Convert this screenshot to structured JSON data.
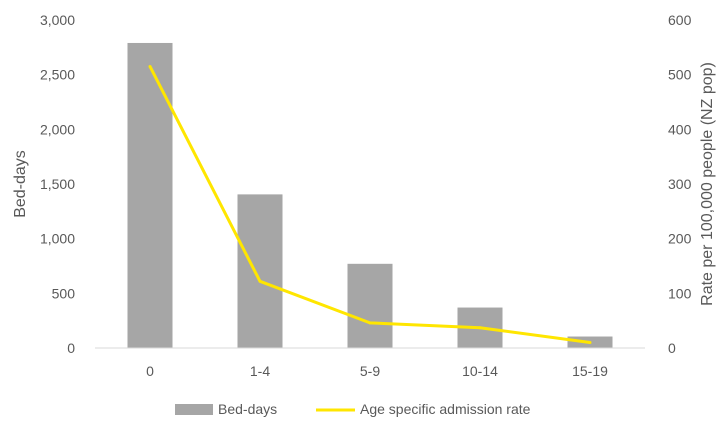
{
  "chart_data": {
    "type": "bar",
    "categories": [
      "0",
      "1-4",
      "5-9",
      "10-14",
      "15-19"
    ],
    "series": [
      {
        "name": "Bed-days",
        "type": "bar",
        "axis": "left",
        "color": "#a6a6a6",
        "values": [
          2790,
          1405,
          770,
          370,
          105
        ]
      },
      {
        "name": "Age specific admission rate",
        "type": "line",
        "axis": "right",
        "color": "#ffe600",
        "values": [
          515,
          122,
          46,
          37,
          10
        ]
      }
    ],
    "ylabel": "Bed-days",
    "ylabel_right": "Rate per 100,000 people (NZ pop)",
    "ylim": [
      0,
      3000
    ],
    "ylim_right": [
      0,
      600
    ],
    "y_ticks": [
      "0",
      "500",
      "1,000",
      "1,500",
      "2,000",
      "2,500",
      "3,000"
    ],
    "y_ticks_right": [
      "0",
      "100",
      "200",
      "300",
      "400",
      "500",
      "600"
    ],
    "legend_position": "bottom",
    "grid": false
  }
}
